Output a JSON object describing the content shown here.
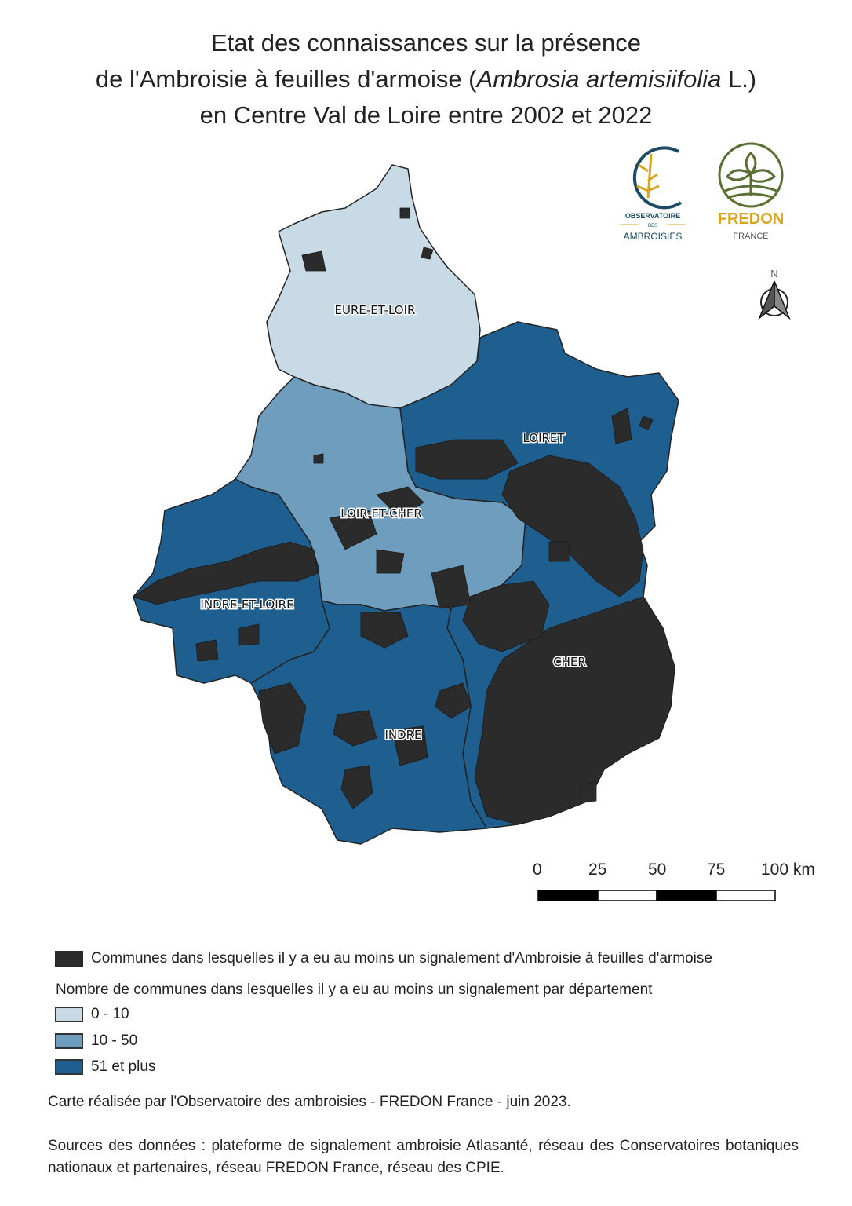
{
  "title": {
    "line1": "Etat des connaissances sur la présence",
    "line2_prefix": "de l'Ambroisie à feuilles d'armoise (",
    "line2_species": "Ambrosia artemisiifolia",
    "line2_suffix": " L.)",
    "line3": "en Centre Val de Loire entre 2002 et 2022"
  },
  "logos": {
    "observatoire": {
      "line1": "OBSERVATOIRE",
      "line2": "DES",
      "line3": "AMBROISIES"
    },
    "fredon": {
      "line1": "FREDON",
      "line2": "FRANCE"
    }
  },
  "north_arrow": {
    "label": "N"
  },
  "departments": [
    {
      "name": "EURE-ET-LOIR",
      "class": "0 - 10"
    },
    {
      "name": "LOIRET",
      "class": "51 et plus"
    },
    {
      "name": "LOIR-ET-CHER",
      "class": "10 - 50"
    },
    {
      "name": "INDRE-ET-LOIRE",
      "class": "51 et plus"
    },
    {
      "name": "CHER",
      "class": "51 et plus"
    },
    {
      "name": "INDRE",
      "class": "51 et plus"
    }
  ],
  "colors": {
    "class_0_10": "#c8dae5",
    "class_10_50": "#6f9dbd",
    "class_51_plus": "#1f5f8f",
    "communes": "#2b2b2b"
  },
  "scale_bar": {
    "ticks": [
      "0",
      "25",
      "50",
      "75",
      "100 km"
    ]
  },
  "legend": {
    "communes_label": "Communes dans lesquelles il y a eu au moins un signalement d'Ambroisie à feuilles d'armoise",
    "heading": "Nombre de communes dans lesquelles il y a eu au moins un signalement par département",
    "classes": [
      "0 - 10",
      "10 - 50",
      "51 et plus"
    ]
  },
  "credit": "Carte réalisée par l'Observatoire des ambroisies - FREDON France - juin 2023.",
  "sources": "Sources des données : plateforme de signalement ambroisie Atlasanté, réseau des Conservatoires botaniques nationaux et partenaires, réseau FREDON France, réseau des CPIE."
}
